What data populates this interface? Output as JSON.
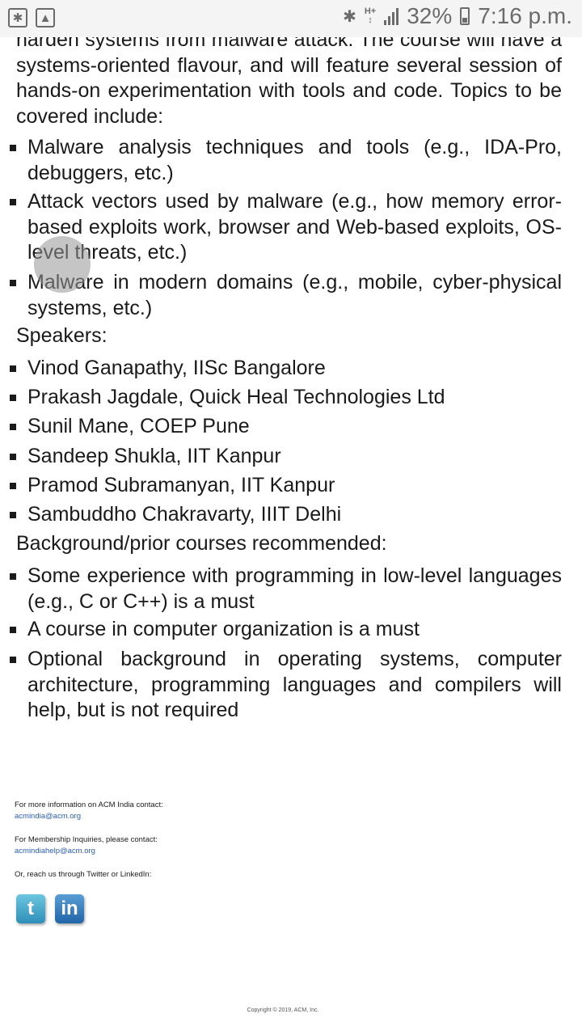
{
  "status_bar": {
    "network_type": "H+",
    "battery_percent": "32%",
    "time": "7:16 p.m.",
    "icons": [
      "bluetooth-icon",
      "gallery-icon",
      "bluetooth-icon",
      "signal-icon",
      "battery-icon"
    ]
  },
  "content": {
    "intro_partial": "harden systems from malware attack. The course will have a systems-oriented flavour, and will feature several session of hands-on experimentation with tools and code. Topics to be covered include:",
    "topics": [
      "Malware analysis techniques and tools (e.g., IDA-Pro, debuggers, etc.)",
      "Attack vectors used by malware (e.g., how memory error-based exploits work, browser and Web-based exploits, OS-level threats, etc.)",
      "Malware in modern domains (e.g., mobile, cyber-physical systems, etc.)"
    ],
    "speakers_heading": "Speakers:",
    "speakers": [
      "Vinod Ganapathy, IISc Bangalore",
      "Prakash Jagdale, Quick Heal Technologies Ltd",
      "Sunil Mane, COEP Pune",
      "Sandeep Shukla, IIT Kanpur",
      "Pramod Subramanyan, IIT Kanpur",
      "Sambuddho Chakravarty, IIIT Delhi"
    ],
    "background_heading": "Background/prior courses recommended:",
    "background": [
      "Some experience with programming in low-level languages (e.g., C or C++) is a must",
      "A course in computer organization is a must",
      "Optional background in operating systems, computer architecture, programming languages and compilers will help, but is not required"
    ]
  },
  "footer": {
    "info_text": "For more information on ACM India contact:",
    "info_email": "acmindia@acm.org",
    "membership_text": "For Membership Inquiries, please contact:",
    "membership_email": "acmindiahelp@acm.org",
    "social_text": "Or, reach us through Twitter or LinkedIn:",
    "twitter_glyph": "t",
    "linkedin_glyph": "in",
    "copyright": "Copyright © 2019, ACM, Inc."
  }
}
